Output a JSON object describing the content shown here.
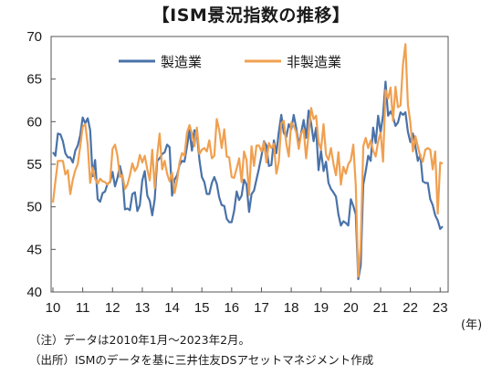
{
  "chart_data": {
    "type": "line",
    "title": "【ISM景況指数の推移】",
    "x_unit": "(年)",
    "y_ticks": [
      40,
      45,
      50,
      55,
      60,
      65,
      70
    ],
    "ylim": [
      40,
      70
    ],
    "x_ticks": [
      "10",
      "11",
      "12",
      "13",
      "14",
      "15",
      "16",
      "17",
      "18",
      "19",
      "20",
      "21",
      "22",
      "23"
    ],
    "x_start": "2010-01",
    "x_end": "2023-02",
    "grid": false,
    "legend_position": "top-center",
    "series": [
      {
        "name": "製造業",
        "color": "#4a72a8",
        "values": [
          56.4,
          56.0,
          58.6,
          58.5,
          57.7,
          56.3,
          55.8,
          55.8,
          55.2,
          56.6,
          57.2,
          58.4,
          60.5,
          59.8,
          60.4,
          59.0,
          53.6,
          55.5,
          50.9,
          50.6,
          51.6,
          51.8,
          52.7,
          52.9,
          54.1,
          52.4,
          53.4,
          54.8,
          53.5,
          49.7,
          49.8,
          49.6,
          51.5,
          51.7,
          49.5,
          50.2,
          53.1,
          54.2,
          51.3,
          50.7,
          49.0,
          50.9,
          55.4,
          55.7,
          56.2,
          56.4,
          57.3,
          57.0,
          51.3,
          53.2,
          53.7,
          54.9,
          55.4,
          55.3,
          57.1,
          59.0,
          56.6,
          59.0,
          58.7,
          55.5,
          53.5,
          52.9,
          51.5,
          51.5,
          52.8,
          53.5,
          52.7,
          51.1,
          50.2,
          50.1,
          48.6,
          48.2,
          48.2,
          49.5,
          51.8,
          50.8,
          51.3,
          53.2,
          52.6,
          49.4,
          51.5,
          51.9,
          53.2,
          54.5,
          56.0,
          57.7,
          57.2,
          54.8,
          54.9,
          57.8,
          56.3,
          58.8,
          60.8,
          58.7,
          58.2,
          59.7,
          59.1,
          60.8,
          59.3,
          57.3,
          58.7,
          60.2,
          58.1,
          61.3,
          59.8,
          57.7,
          59.3,
          54.3,
          56.6,
          54.2,
          55.3,
          52.8,
          52.1,
          51.7,
          51.2,
          49.1,
          47.8,
          48.3,
          48.1,
          47.8,
          50.9,
          50.1,
          49.1,
          41.5,
          43.1,
          52.6,
          54.2,
          56.0,
          55.4,
          59.3,
          57.5,
          60.7,
          58.7,
          60.8,
          64.7,
          60.7,
          61.2,
          60.6,
          59.5,
          59.9,
          61.1,
          60.8,
          61.1,
          58.8,
          57.6,
          58.6,
          57.1,
          55.4,
          56.1,
          53.0,
          52.8,
          52.8,
          50.9,
          50.2,
          49.0,
          48.4,
          47.4,
          47.7
        ]
      },
      {
        "name": "非製造業",
        "color": "#f0a050",
        "values": [
          50.5,
          53.0,
          55.4,
          55.4,
          55.4,
          53.8,
          54.3,
          51.5,
          53.2,
          54.3,
          55.0,
          57.1,
          59.4,
          59.7,
          57.3,
          52.8,
          54.6,
          53.3,
          52.7,
          53.3,
          53.0,
          52.9,
          52.6,
          53.0,
          56.8,
          57.3,
          56.0,
          53.5,
          53.7,
          52.1,
          52.6,
          53.7,
          55.1,
          54.2,
          54.7,
          56.1,
          55.2,
          56.0,
          54.4,
          53.1,
          56.7,
          52.2,
          56.0,
          58.6,
          54.4,
          55.4,
          53.9,
          53.0,
          54.0,
          51.6,
          53.1,
          55.2,
          56.3,
          56.0,
          58.7,
          59.6,
          58.6,
          57.1,
          59.3,
          56.2,
          56.7,
          56.9,
          56.5,
          57.8,
          55.7,
          56.0,
          60.3,
          59.0,
          56.9,
          59.1,
          55.9,
          55.8,
          53.5,
          53.4,
          54.5,
          55.7,
          52.9,
          56.5,
          55.5,
          51.4,
          57.1,
          54.8,
          57.2,
          57.2,
          56.5,
          57.6,
          55.2,
          57.5,
          56.9,
          57.4,
          53.9,
          55.3,
          59.8,
          60.1,
          57.4,
          55.9,
          59.9,
          59.5,
          58.8,
          56.8,
          58.6,
          59.1,
          55.7,
          58.5,
          61.6,
          60.3,
          60.7,
          57.6,
          56.7,
          59.7,
          56.1,
          55.5,
          56.9,
          55.1,
          53.7,
          56.4,
          52.6,
          54.7,
          53.9,
          55.0,
          55.5,
          57.3,
          52.5,
          41.8,
          45.4,
          57.1,
          58.1,
          56.9,
          57.8,
          56.6,
          55.9,
          57.7,
          58.7,
          55.3,
          63.7,
          62.7,
          64.0,
          60.1,
          64.1,
          61.7,
          61.9,
          66.7,
          69.1,
          62.0,
          59.9,
          56.5,
          58.3,
          57.1,
          55.9,
          55.3,
          56.7,
          56.9,
          56.7,
          54.4,
          56.5,
          49.2,
          55.2,
          55.1
        ]
      }
    ]
  },
  "notes": {
    "note": "（注）データは2010年1月～2023年2月。",
    "source": "（出所）ISMのデータを基に三井住友DSアセットマネジメント作成"
  }
}
